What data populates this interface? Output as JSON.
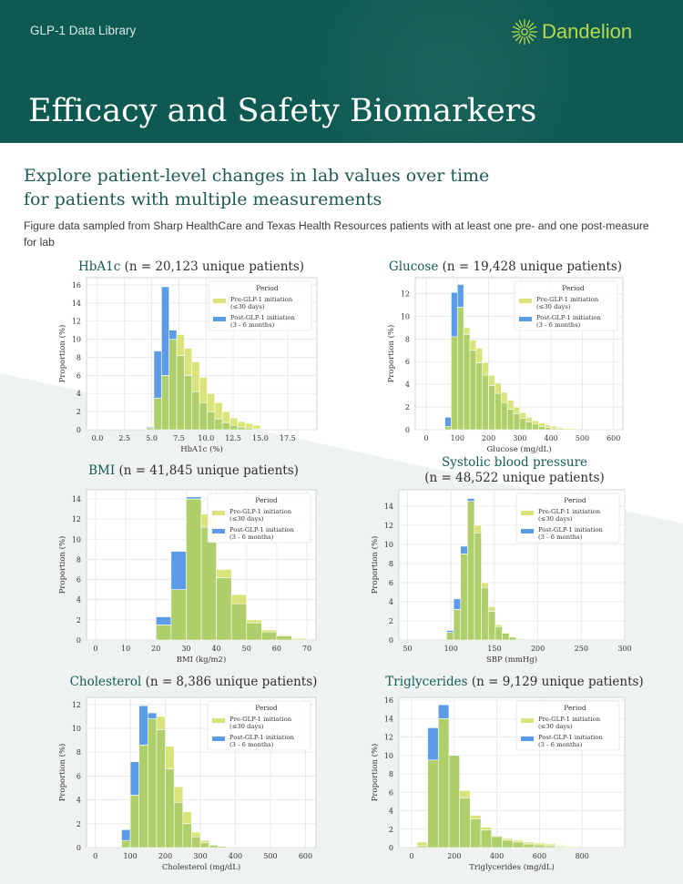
{
  "header": {
    "library_label": "GLP-1 Data Library",
    "brand_name": "Dandelion",
    "title": "Efficacy and Safety Biomarkers"
  },
  "subtitle_line1": "Explore patient-level changes in lab values over time",
  "subtitle_line2": "for patients with multiple measurements",
  "description": "Figure data sampled from Sharp HealthCare and Texas Health Resources patients with at least one pre- and one post-measure for lab",
  "colors": {
    "header_bg": "#0e5a52",
    "brand": "#b8d94e",
    "pre": "#d9e47a",
    "post": "#5b9be8",
    "overlap": "#aecf6a"
  },
  "legend": {
    "title": "Period",
    "pre_line1": "Pre-GLP-1 initiation",
    "pre_line2": "(≤30 days)",
    "post_line1": "Post-GLP-1 initiation",
    "post_line2": "(3 - 6 months)"
  },
  "ylabel": "Proportion (%)",
  "chart_data": [
    {
      "type": "bar",
      "lab": "HbA1c",
      "title_rest": "(n = 20,123 unique patients)",
      "xlabel": "HbA1c (%)",
      "xlim": [
        -1,
        20.2
      ],
      "ylim": [
        0,
        16.8
      ],
      "xticks": [
        0,
        2.5,
        5,
        7.5,
        10,
        12.5,
        15,
        17.5
      ],
      "xtick_labels": [
        "0.0",
        "2.5",
        "5.0",
        "7.5",
        "10.0",
        "12.5",
        "15.0",
        "17.5"
      ],
      "yticks": [
        0,
        2,
        4,
        6,
        8,
        10,
        12,
        14,
        16
      ],
      "bin_starts": [
        4.5,
        5.2,
        5.9,
        6.6,
        7.3,
        8.0,
        8.7,
        9.4,
        10.1,
        10.8,
        11.5,
        12.2,
        12.9,
        13.6,
        14.3,
        15.0
      ],
      "bin_width": 0.7,
      "series": [
        {
          "name": "Pre-GLP-1 initiation (≤30 days)",
          "values": [
            0.2,
            3.5,
            6.0,
            10.0,
            10.5,
            9.0,
            7.5,
            5.8,
            4.0,
            3.0,
            2.0,
            1.3,
            0.9,
            0.7,
            0.5,
            0.0
          ]
        },
        {
          "name": "Post-GLP-1 initiation (3 - 6 months)",
          "values": [
            0.3,
            8.7,
            15.8,
            11.0,
            8.2,
            6.0,
            4.2,
            3.0,
            2.0,
            1.2,
            0.8,
            0.5,
            0.3,
            0.2,
            0.1,
            0.0
          ]
        }
      ]
    },
    {
      "type": "bar",
      "lab": "Glucose",
      "title_rest": "(n = 19,428 unique patients)",
      "xlabel": "Glucose (mg/dL)",
      "xlim": [
        -35,
        630
      ],
      "ylim": [
        0,
        13.4
      ],
      "xticks": [
        0,
        100,
        200,
        300,
        400,
        500,
        600
      ],
      "xtick_labels": [
        "0",
        "100",
        "200",
        "300",
        "400",
        "500",
        "600"
      ],
      "yticks": [
        0,
        2,
        4,
        6,
        8,
        10,
        12
      ],
      "bin_starts": [
        60,
        80,
        100,
        120,
        140,
        160,
        180,
        200,
        220,
        240,
        260,
        280,
        300,
        320,
        340,
        360,
        380,
        400,
        420,
        440,
        460
      ],
      "bin_width": 20,
      "series": [
        {
          "name": "Pre-GLP-1 initiation (≤30 days)",
          "values": [
            0.3,
            8.2,
            10.8,
            9.0,
            7.9,
            7.2,
            5.9,
            4.8,
            4.1,
            3.3,
            2.6,
            2.0,
            1.5,
            1.1,
            0.8,
            0.6,
            0.4,
            0.3,
            0.2,
            0.1,
            0.1
          ]
        },
        {
          "name": "Post-GLP-1 initiation (3 - 6 months)",
          "values": [
            1.1,
            12.1,
            12.8,
            8.4,
            7.0,
            5.9,
            4.8,
            3.9,
            3.2,
            2.4,
            1.8,
            1.4,
            1.0,
            0.7,
            0.5,
            0.3,
            0.2,
            0.1,
            0.1,
            0.0,
            0.0
          ]
        }
      ]
    },
    {
      "type": "bar",
      "lab": "BMI",
      "title_rest": "(n = 41,845 unique patients)",
      "xlabel": "BMI (kg/m2)",
      "xlim": [
        -3,
        73
      ],
      "ylim": [
        0,
        14.9
      ],
      "xticks": [
        0,
        10,
        20,
        30,
        40,
        50,
        60,
        70
      ],
      "xtick_labels": [
        "0",
        "10",
        "20",
        "30",
        "40",
        "50",
        "60",
        "70"
      ],
      "yticks": [
        0,
        2,
        4,
        6,
        8,
        10,
        12,
        14
      ],
      "bin_starts": [
        20,
        25,
        30,
        35,
        40,
        45,
        50,
        55,
        60,
        65
      ],
      "bin_width": 5,
      "series": [
        {
          "name": "Pre-GLP-1 initiation (≤30 days)",
          "values": [
            1.5,
            5.0,
            14.0,
            12.5,
            7.0,
            4.5,
            2.0,
            1.0,
            0.5,
            0.2
          ]
        },
        {
          "name": "Post-GLP-1 initiation (3 - 6 months)",
          "values": [
            2.3,
            8.8,
            14.2,
            11.2,
            6.2,
            3.6,
            1.7,
            0.8,
            0.4,
            0.1
          ]
        }
      ]
    },
    {
      "type": "bar",
      "lab": "Systolic blood pressure",
      "title_rest": "(n = 48,522 unique patients)",
      "xlabel": "SBP (mmHg)",
      "xlim": [
        40,
        300
      ],
      "ylim": [
        0,
        15.7
      ],
      "xticks": [
        50,
        100,
        150,
        200,
        250,
        300
      ],
      "xtick_labels": [
        "50",
        "100",
        "150",
        "200",
        "250",
        "300"
      ],
      "yticks": [
        0,
        2,
        4,
        6,
        8,
        10,
        12,
        14
      ],
      "bin_starts": [
        95,
        103,
        111,
        119,
        127,
        135,
        143,
        151,
        159,
        167,
        175
      ],
      "bin_width": 8,
      "series": [
        {
          "name": "Pre-GLP-1 initiation (≤30 days)",
          "values": [
            0.8,
            3.2,
            9.0,
            14.5,
            12.0,
            6.0,
            3.5,
            1.6,
            0.8,
            0.3,
            0.1
          ]
        },
        {
          "name": "Post-GLP-1 initiation (3 - 6 months)",
          "values": [
            1.0,
            4.3,
            9.8,
            14.8,
            11.2,
            5.5,
            3.0,
            1.4,
            0.7,
            0.3,
            0.1
          ]
        }
      ]
    },
    {
      "type": "bar",
      "lab": "Cholesterol",
      "title_rest": "(n = 8,386 unique patients)",
      "xlabel": "Cholesterol (mg/dL)",
      "xlim": [
        -25,
        630
      ],
      "ylim": [
        0,
        12.6
      ],
      "xticks": [
        0,
        100,
        200,
        300,
        400,
        500,
        600
      ],
      "xtick_labels": [
        "0",
        "100",
        "200",
        "300",
        "400",
        "500",
        "600"
      ],
      "yticks": [
        0,
        2,
        4,
        6,
        8,
        10,
        12
      ],
      "bin_starts": [
        75,
        100,
        125,
        150,
        175,
        200,
        225,
        250,
        275,
        300,
        325,
        350
      ],
      "bin_width": 25,
      "series": [
        {
          "name": "Pre-GLP-1 initiation (≤30 days)",
          "values": [
            0.6,
            4.4,
            8.6,
            10.8,
            11.0,
            8.5,
            5.1,
            3.0,
            1.3,
            0.6,
            0.2,
            0.1
          ]
        },
        {
          "name": "Post-GLP-1 initiation (3 - 6 months)",
          "values": [
            1.5,
            7.2,
            11.9,
            11.3,
            9.9,
            6.6,
            3.8,
            2.0,
            0.9,
            0.4,
            0.2,
            0.1
          ]
        }
      ]
    },
    {
      "type": "bar",
      "lab": "Triglycerides",
      "title_rest": "(n = 9,129 unique patients)",
      "xlabel": "Triglycerides (mg/dL)",
      "xlim": [
        -60,
        1000
      ],
      "ylim": [
        0,
        16.3
      ],
      "xticks": [
        0,
        200,
        400,
        600,
        800
      ],
      "xtick_labels": [
        "0",
        "200",
        "400",
        "600",
        "800"
      ],
      "yticks": [
        0,
        2,
        4,
        6,
        8,
        10,
        12,
        14,
        16
      ],
      "bin_starts": [
        25,
        75,
        125,
        175,
        225,
        275,
        325,
        375,
        425,
        475,
        525,
        575,
        625,
        675,
        725
      ],
      "bin_width": 50,
      "series": [
        {
          "name": "Pre-GLP-1 initiation (≤30 days)",
          "values": [
            0.6,
            9.5,
            14.0,
            10.0,
            6.2,
            3.5,
            2.2,
            1.3,
            1.0,
            0.8,
            0.6,
            0.5,
            0.4,
            0.2,
            0.1
          ]
        },
        {
          "name": "Post-GLP-1 initiation (3 - 6 months)",
          "values": [
            0.2,
            13.0,
            15.5,
            10.0,
            5.4,
            3.1,
            1.9,
            1.2,
            0.8,
            0.6,
            0.4,
            0.3,
            0.2,
            0.1,
            0.0
          ]
        }
      ]
    }
  ]
}
